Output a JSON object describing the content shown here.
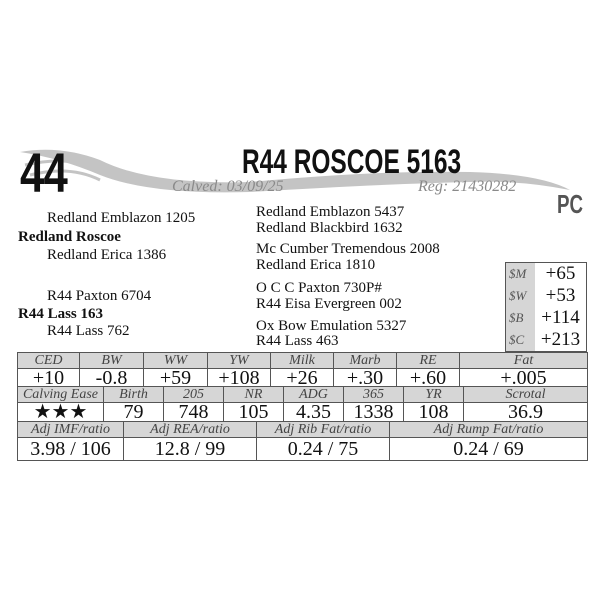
{
  "lot": {
    "number": "44",
    "name": "R44 ROSCOE 5163",
    "calved": "Calved: 03/09/25",
    "reg": "Reg: 21430282",
    "breed_code": "PC"
  },
  "pedigree": {
    "sire": "Redland Roscoe",
    "sire_sire": "Redland Emblazon 1205",
    "sire_dam": "Redland Erica 1386",
    "dam": "R44 Lass 163",
    "dam_sire": "R44 Paxton 6704",
    "dam_dam": "R44 Lass 762",
    "great": [
      "Redland Emblazon 5437",
      "Redland Blackbird 1632",
      "Mc Cumber Tremendous 2008",
      "Redland Erica 1810",
      "O C C Paxton 730P#",
      "R44 Eisa Evergreen 002",
      "Ox Bow Emulation 5327",
      "R44 Lass 463"
    ]
  },
  "indexes": [
    {
      "label": "$M",
      "value": "+65"
    },
    {
      "label": "$W",
      "value": "+53"
    },
    {
      "label": "$B",
      "value": "+114"
    },
    {
      "label": "$C",
      "value": "+213"
    }
  ],
  "epds": {
    "headers": [
      "CED",
      "BW",
      "WW",
      "YW",
      "Milk",
      "Marb",
      "RE",
      "Fat"
    ],
    "values": [
      "+10",
      "-0.8",
      "+59",
      "+108",
      "+26",
      "+.30",
      "+.60",
      "+.005"
    ]
  },
  "performance": {
    "headers": [
      "Calving Ease",
      "Birth",
      "205",
      "NR",
      "ADG",
      "365",
      "YR",
      "Scrotal"
    ],
    "values": [
      "★★★",
      "79",
      "748",
      "105",
      "4.35",
      "1338",
      "108",
      "36.9"
    ]
  },
  "carcass": {
    "headers": [
      "Adj IMF/ratio",
      "Adj REA/ratio",
      "Adj Rib Fat/ratio",
      "Adj Rump Fat/ratio"
    ],
    "values": [
      "3.98 / 106",
      "12.8 / 99",
      "0.24 / 75",
      "0.24 / 69"
    ]
  },
  "colors": {
    "header_bg": "#d6d6d6",
    "swoosh": "#c4c4c4"
  }
}
